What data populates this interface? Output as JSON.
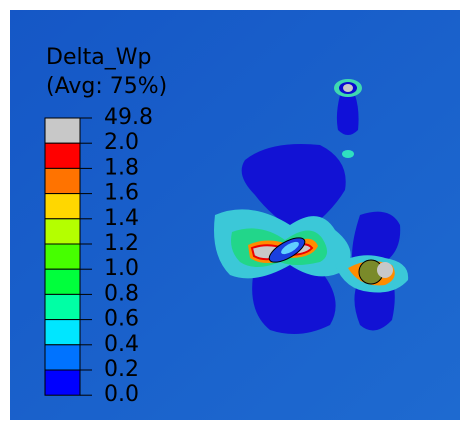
{
  "legend": {
    "title": "Delta_Wp",
    "subtitle": "(Avg: 75%)",
    "labels": [
      "49.8",
      "2.0",
      "1.8",
      "1.6",
      "1.4",
      "1.2",
      "1.0",
      "0.8",
      "0.6",
      "0.4",
      "0.2",
      "0.0"
    ],
    "colors": [
      "#c8c8c8",
      "#ff0000",
      "#ff7300",
      "#ffd700",
      "#b4ff00",
      "#46ff00",
      "#00ff3c",
      "#00ffa5",
      "#00e6ff",
      "#0073ff",
      "#0000ff"
    ]
  }
}
